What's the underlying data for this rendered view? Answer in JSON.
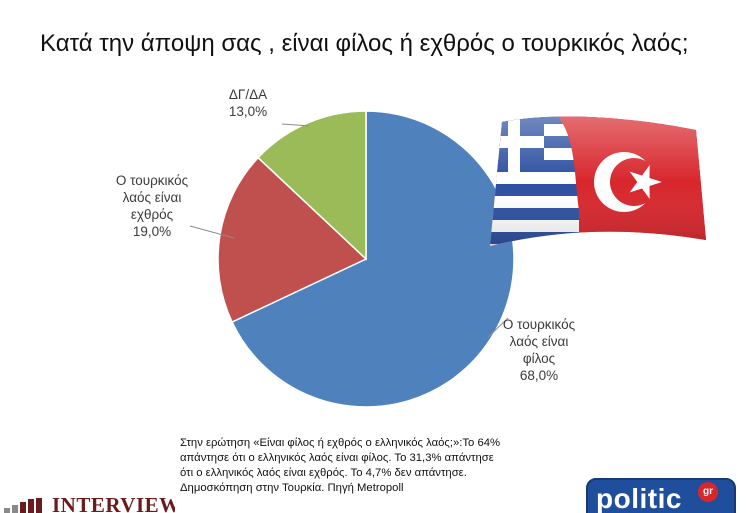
{
  "title": "Κατά την άποψη σας , είναι φίλος ή εχθρός ο τουρκικός λαός;",
  "chart_data": {
    "type": "pie",
    "slices": [
      {
        "label_lines": [
          "Ο τουρκικός",
          "λαός είναι",
          "φίλος"
        ],
        "value": 68.0,
        "value_label": "68,0%",
        "color": "#4f81bd"
      },
      {
        "label_lines": [
          "Ο τουρκικός",
          "λαός είναι",
          "εχθρός"
        ],
        "value": 19.0,
        "value_label": "19,0%",
        "color": "#c0504d"
      },
      {
        "label_lines": [
          "ΔΓ/ΔΑ"
        ],
        "value": 13.0,
        "value_label": "13,0%",
        "color": "#9bbb59"
      }
    ],
    "start_angle_deg": 0,
    "direction": "clockwise"
  },
  "note": {
    "lines": [
      "Στην ερώτηση «Είναι φίλος ή εχθρός ο ελληνικός λαός;»:Το 64%",
      "απάντησε ότι ο ελληνικός λαός είναι φίλος. Το 31,3% απάντησε",
      "ότι ο ελληνικός λαός είναι εχθρός. Το 4,7% δεν απάντησε.",
      "Δημοσκόπηση στην Τουρκία. Πηγή Metropoll"
    ]
  },
  "logos": {
    "interview": "INTERVIEW",
    "politic": "politic",
    "politic_badge": "gr"
  },
  "colors": {
    "greek_flag_blue": "#2c4fa0",
    "turkish_flag_red": "#d7262c"
  }
}
